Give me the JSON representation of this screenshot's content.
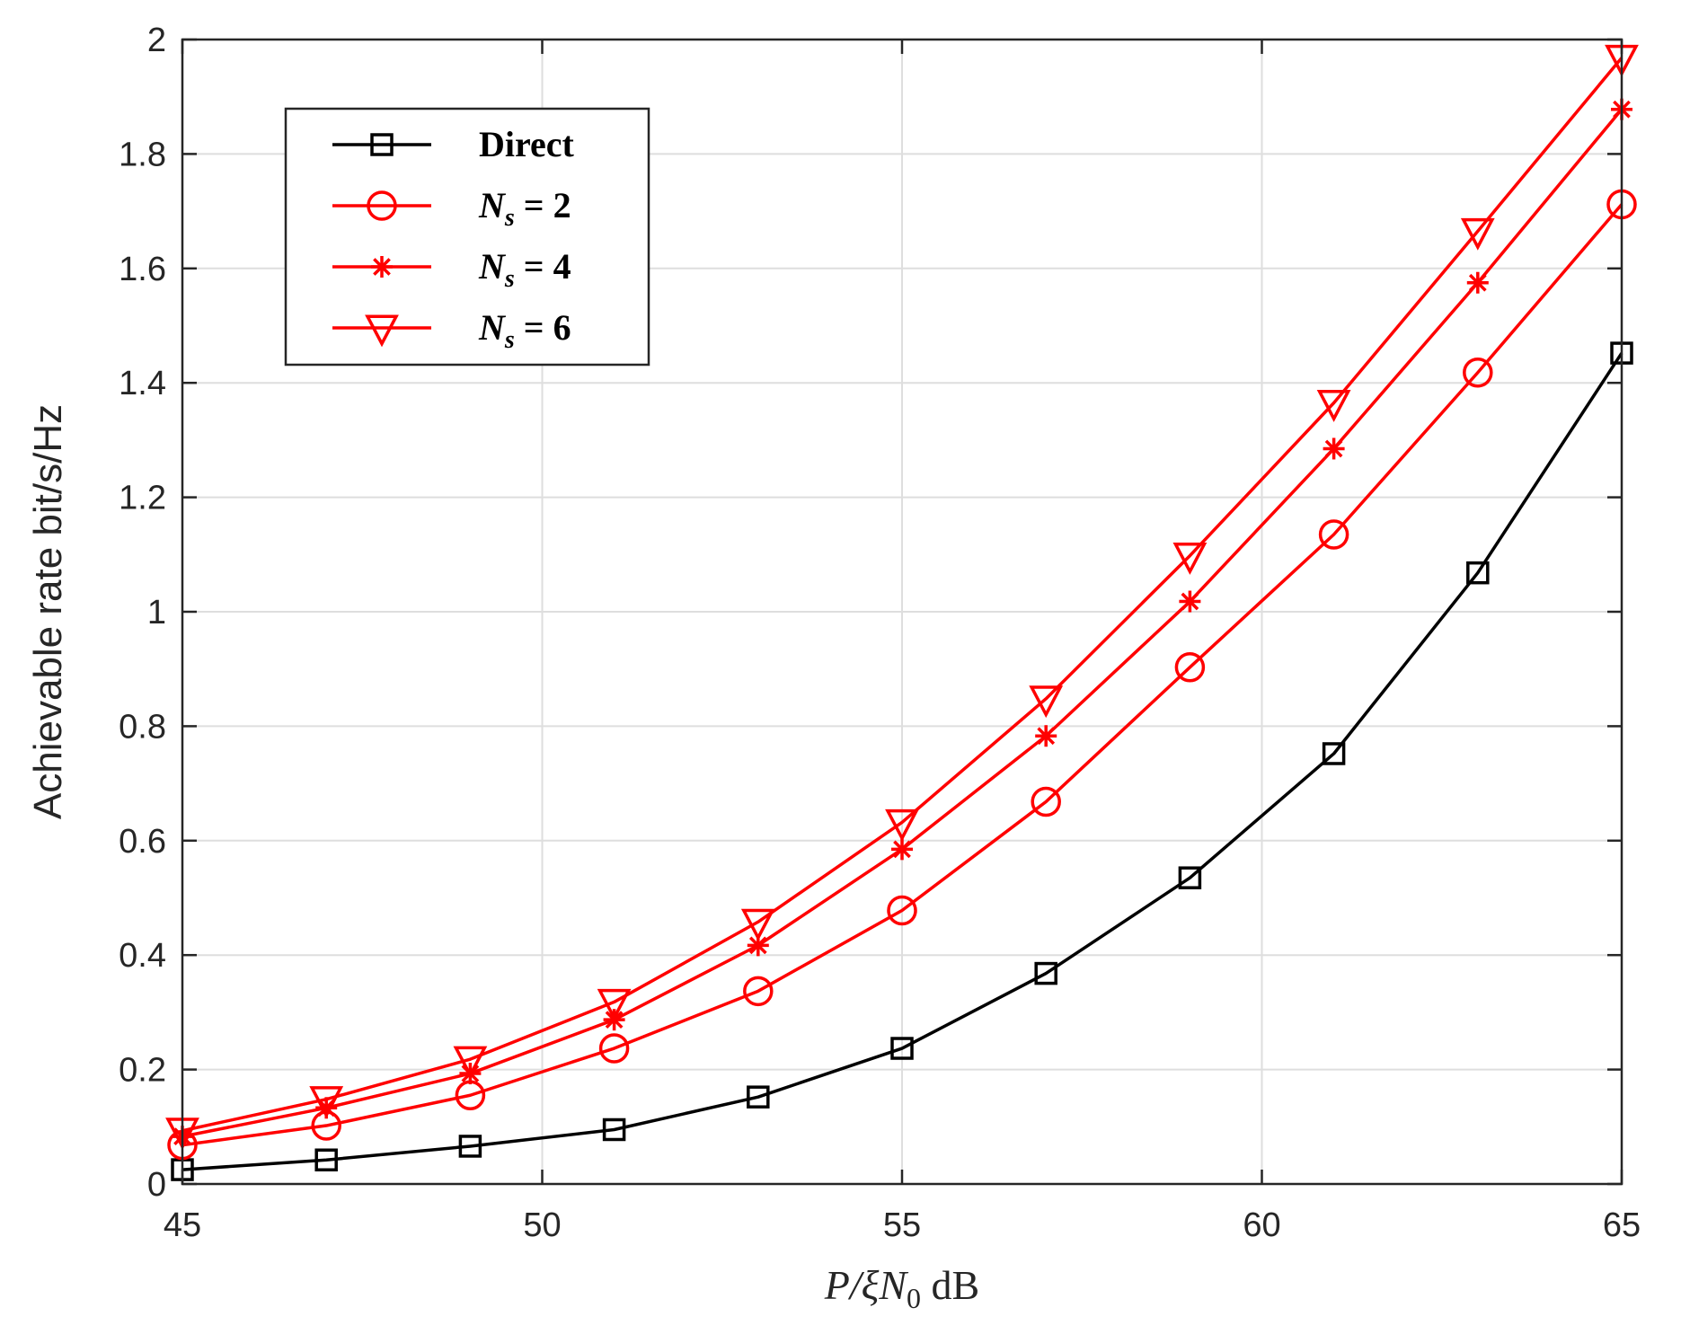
{
  "chart_data": {
    "type": "line",
    "title": "",
    "xlabel": {
      "prefix": "P/ξN",
      "subscript": "0",
      "suffix": " dB"
    },
    "ylabel": "Achievable rate  bit/s/Hz",
    "xlim": [
      45,
      65
    ],
    "ylim": [
      0,
      2
    ],
    "xticks": [
      45,
      50,
      55,
      60,
      65
    ],
    "yticks": [
      0,
      0.2,
      0.4,
      0.6,
      0.8,
      1,
      1.2,
      1.4,
      1.6,
      1.8,
      2
    ],
    "ytick_labels": [
      "0",
      "0.2",
      "0.4",
      "0.6",
      "0.8",
      "1",
      "1.2",
      "1.4",
      "1.6",
      "1.8",
      "2"
    ],
    "grid": true,
    "legend_position": "top-left",
    "x": [
      45,
      47,
      49,
      51,
      53,
      55,
      57,
      59,
      61,
      63,
      65
    ],
    "series": [
      {
        "name": "Direct",
        "label_main": "Direct",
        "label_sub": "",
        "label_rest": "",
        "color": "#000000",
        "marker": "square",
        "values": [
          0.025,
          0.042,
          0.066,
          0.095,
          0.152,
          0.237,
          0.368,
          0.535,
          0.752,
          1.068,
          1.452
        ]
      },
      {
        "name": "N_s = 2",
        "label_main": "N",
        "label_sub": "s",
        "label_rest": " = 2",
        "color": "#ff0000",
        "marker": "circle",
        "values": [
          0.068,
          0.102,
          0.155,
          0.237,
          0.337,
          0.478,
          0.668,
          0.903,
          1.135,
          1.418,
          1.712
        ]
      },
      {
        "name": "N_s = 4",
        "label_main": "N",
        "label_sub": "s",
        "label_rest": " = 4",
        "color": "#ff0000",
        "marker": "asterisk",
        "values": [
          0.083,
          0.133,
          0.193,
          0.287,
          0.417,
          0.585,
          0.783,
          1.018,
          1.285,
          1.575,
          1.878
        ]
      },
      {
        "name": "N_s = 6",
        "label_main": "N",
        "label_sub": "s",
        "label_rest": " = 6",
        "color": "#ff0000",
        "marker": "triangle-down",
        "values": [
          0.093,
          0.148,
          0.218,
          0.318,
          0.458,
          0.632,
          0.848,
          1.098,
          1.365,
          1.665,
          1.968
        ]
      }
    ]
  }
}
